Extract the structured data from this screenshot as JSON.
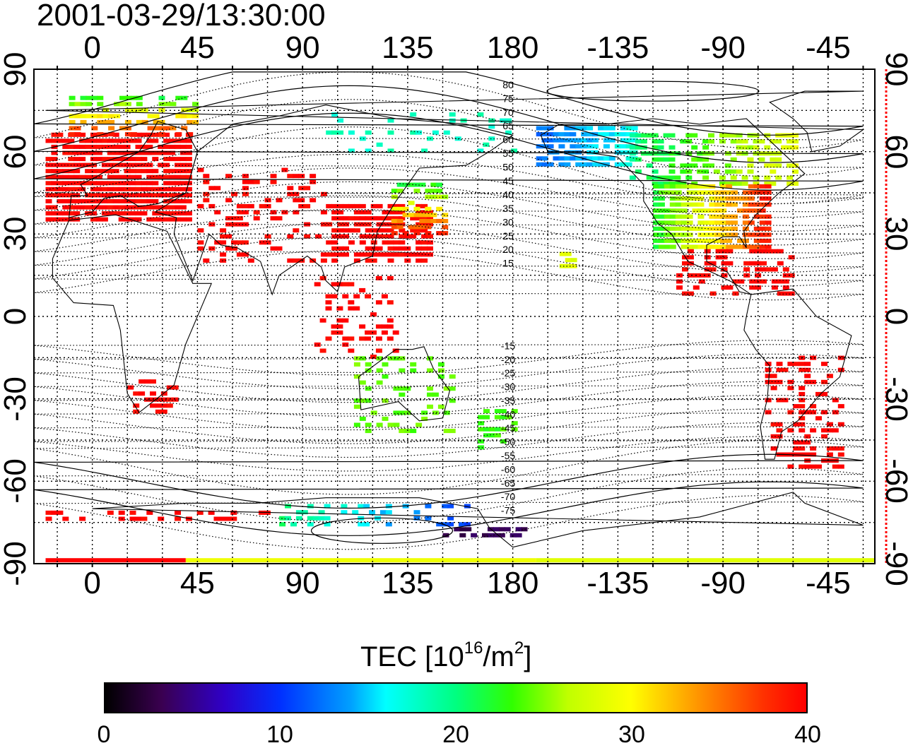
{
  "title": "2001-03-29/13:30:00",
  "axes": {
    "top_lon_ticks": [
      "0",
      "45",
      "90",
      "135",
      "180",
      "-135",
      "-90",
      "-45"
    ],
    "bottom_lon_ticks": [
      "0",
      "45",
      "90",
      "135",
      "180",
      "-135",
      "-90",
      "-45"
    ],
    "left_lat_ticks": [
      "90",
      "60",
      "30",
      "0",
      "-30",
      "-60",
      "-90"
    ],
    "right_lat_ticks": [
      "90",
      "60",
      "30",
      "0",
      "-30",
      "-60",
      "-90"
    ]
  },
  "contour_labels": [
    "80",
    "75",
    "70",
    "65",
    "60",
    "55",
    "50",
    "45",
    "40",
    "35",
    "30",
    "25",
    "20",
    "15",
    "-15",
    "-20",
    "-25",
    "-30",
    "-35",
    "-40",
    "-45",
    "-50",
    "-55",
    "-60",
    "-65",
    "-70",
    "-75"
  ],
  "colorbar": {
    "label_prefix": "TEC  [10",
    "label_exp1": "16",
    "label_mid": "/m",
    "label_exp2": "2",
    "label_suffix": "]",
    "ticks": [
      "0",
      "10",
      "20",
      "30",
      "40"
    ],
    "range": [
      0,
      40
    ]
  },
  "colors": {
    "land_outline": "#000000",
    "grid": "#000000",
    "right_edge_marker": "#ff0000"
  },
  "map_data": {
    "projection": "equirectangular",
    "lon_range": [
      -25,
      335
    ],
    "lat_range": [
      -90,
      90
    ],
    "variable": "TEC",
    "regions": [
      {
        "name": "Europe",
        "tec": 40
      },
      {
        "name": "Scandinavia",
        "tec": 33
      },
      {
        "name": "East Asia",
        "tec": 40
      },
      {
        "name": "Japan",
        "tec": 28
      },
      {
        "name": "Alaska",
        "tec": 14
      },
      {
        "name": "Canada",
        "tec": 22
      },
      {
        "name": "Eastern United States",
        "tec": 40
      },
      {
        "name": "Southern United States",
        "tec": 30
      },
      {
        "name": "South America",
        "tec": 40
      },
      {
        "name": "Australia",
        "tec": 24
      },
      {
        "name": "New Zealand",
        "tec": 22
      },
      {
        "name": "Antarctica coast",
        "tec": 20
      }
    ]
  }
}
